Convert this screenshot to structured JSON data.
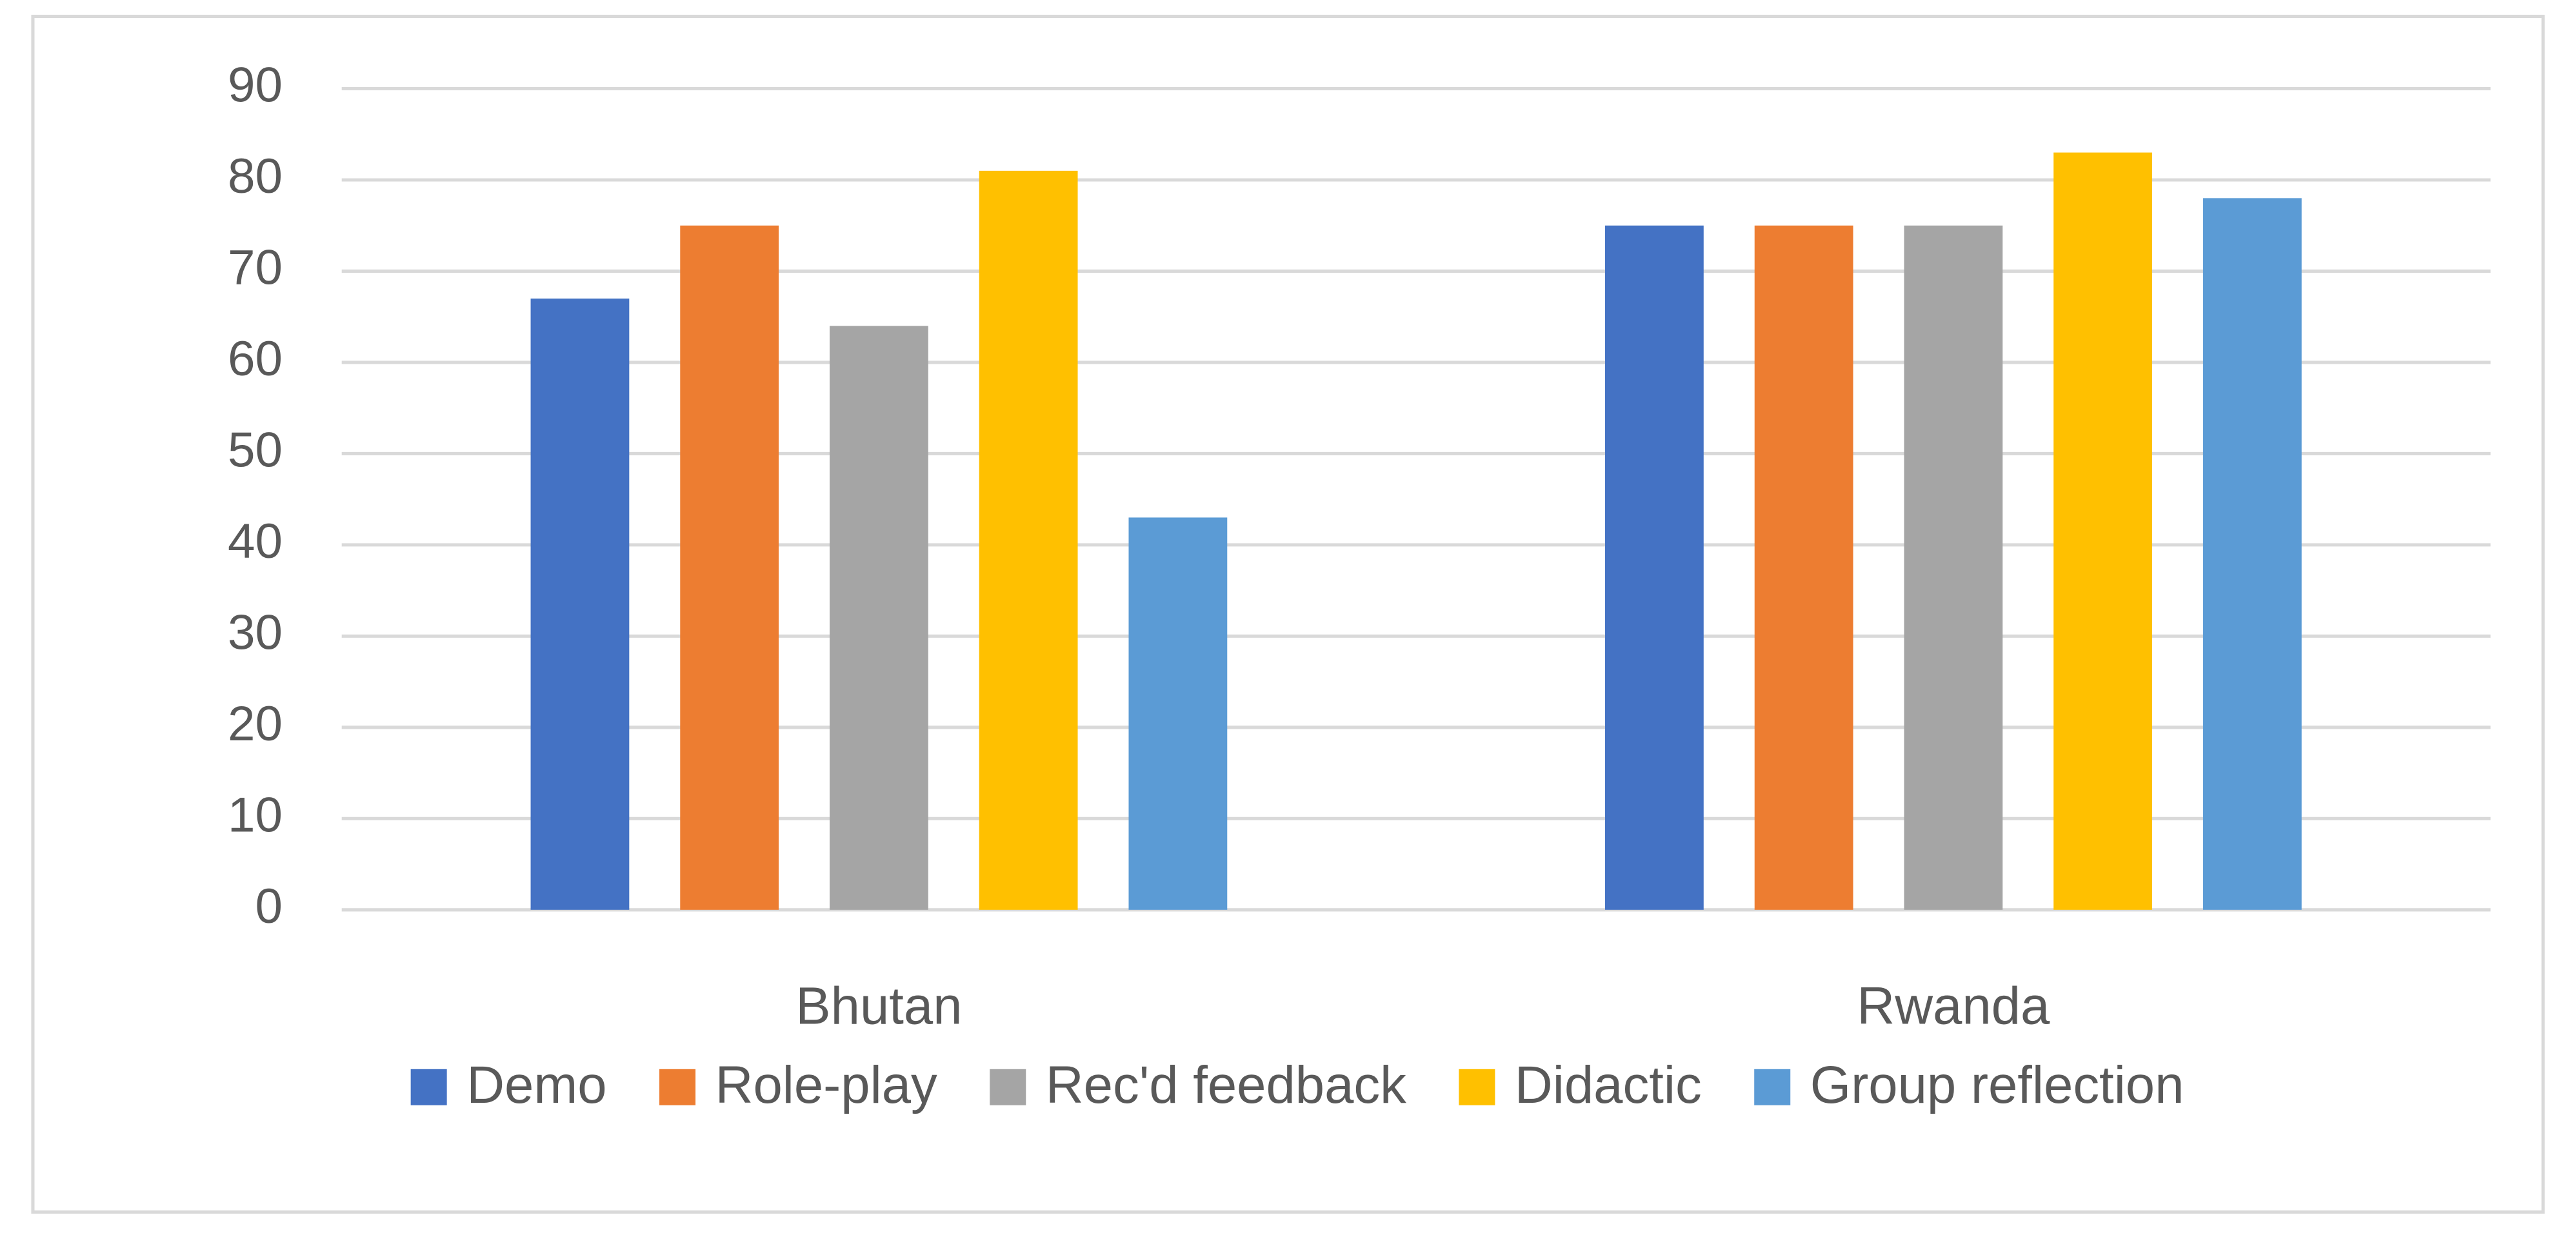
{
  "chart_data": {
    "type": "bar",
    "categories": [
      "Bhutan",
      "Rwanda"
    ],
    "series": [
      {
        "name": "Demo",
        "color": "#4472c4",
        "values": [
          67,
          75
        ]
      },
      {
        "name": "Role-play",
        "color": "#ed7d31",
        "values": [
          75,
          75
        ]
      },
      {
        "name": "Rec'd feedback",
        "color": "#a5a5a5",
        "values": [
          64,
          75
        ]
      },
      {
        "name": "Didactic",
        "color": "#ffc000",
        "values": [
          81,
          83
        ]
      },
      {
        "name": "Group reflection",
        "color": "#5b9bd5",
        "values": [
          43,
          78
        ]
      }
    ],
    "ylim": [
      0,
      90
    ],
    "yticks": [
      0,
      10,
      20,
      30,
      40,
      50,
      60,
      70,
      80,
      90
    ],
    "grid": true,
    "legend": "bottom"
  }
}
